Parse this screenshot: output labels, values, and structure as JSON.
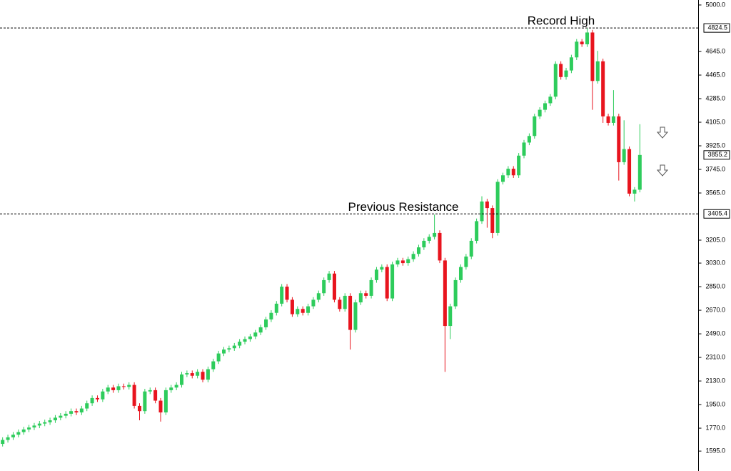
{
  "chart_data": {
    "type": "candlestick",
    "open": [
      1650,
      1680,
      1700,
      1720,
      1740,
      1760,
      1775,
      1790,
      1805,
      1815,
      1830,
      1850,
      1865,
      1880,
      1900,
      1890,
      1920,
      1960,
      2000,
      1990,
      2050,
      2080,
      2060,
      2090,
      2085,
      2100,
      1940,
      1900,
      2050,
      2060,
      1980,
      1890,
      2060,
      2080,
      2100,
      2180,
      2190,
      2170,
      2200,
      2140,
      2220,
      2280,
      2340,
      2370,
      2380,
      2400,
      2430,
      2450,
      2470,
      2500,
      2540,
      2600,
      2650,
      2720,
      2850,
      2750,
      2640,
      2680,
      2650,
      2700,
      2750,
      2800,
      2900,
      2950,
      2750,
      2680,
      2780,
      2520,
      2730,
      2800,
      2780,
      2900,
      2980,
      3000,
      2760,
      3020,
      3050,
      3030,
      3060,
      3100,
      3150,
      3200,
      3230,
      3260,
      3050,
      2550,
      2700,
      2900,
      3000,
      3080,
      3200,
      3350,
      3500,
      3450,
      3260,
      3650,
      3700,
      3750,
      3700,
      3850,
      3950,
      4000,
      4150,
      4200,
      4250,
      4300,
      4550,
      4450,
      4500,
      4600,
      4720,
      4700,
      4790,
      4420,
      4570,
      4150,
      4100,
      4150,
      3800,
      3900,
      3560,
      3590
    ],
    "high": [
      1700,
      1720,
      1740,
      1760,
      1780,
      1795,
      1810,
      1825,
      1835,
      1850,
      1870,
      1885,
      1900,
      1920,
      1920,
      1940,
      1980,
      2020,
      2020,
      2070,
      2100,
      2100,
      2110,
      2110,
      2120,
      2120,
      1960,
      2070,
      2080,
      2080,
      2000,
      2080,
      2100,
      2120,
      2200,
      2210,
      2210,
      2220,
      2220,
      2240,
      2300,
      2360,
      2390,
      2400,
      2420,
      2450,
      2470,
      2490,
      2520,
      2560,
      2620,
      2670,
      2740,
      2870,
      2870,
      2770,
      2700,
      2700,
      2720,
      2770,
      2820,
      2920,
      2970,
      2970,
      2770,
      2800,
      2800,
      2750,
      2820,
      2820,
      2920,
      3000,
      3020,
      3020,
      3040,
      3070,
      3070,
      3080,
      3120,
      3170,
      3220,
      3250,
      3400,
      3280,
      3070,
      2720,
      2920,
      3020,
      3100,
      3220,
      3370,
      3540,
      3520,
      3470,
      3670,
      3720,
      3770,
      3770,
      3870,
      3970,
      4020,
      4170,
      4220,
      4270,
      4320,
      4570,
      4570,
      4520,
      4620,
      4740,
      4740,
      4824.5,
      4810,
      4650,
      4590,
      4170,
      4350,
      4170,
      4120,
      3920,
      3610,
      4090
    ],
    "low": [
      1630,
      1660,
      1680,
      1700,
      1720,
      1740,
      1755,
      1770,
      1785,
      1795,
      1810,
      1830,
      1845,
      1860,
      1870,
      1870,
      1900,
      1940,
      1970,
      1970,
      2030,
      2040,
      2040,
      2065,
      2065,
      1920,
      1830,
      1880,
      2030,
      1960,
      1820,
      1870,
      2040,
      2060,
      2080,
      2160,
      2150,
      2150,
      2120,
      2120,
      2200,
      2260,
      2320,
      2350,
      2360,
      2380,
      2410,
      2430,
      2450,
      2480,
      2520,
      2580,
      2630,
      2700,
      2730,
      2620,
      2620,
      2630,
      2630,
      2680,
      2730,
      2780,
      2880,
      2730,
      2660,
      2660,
      2370,
      2500,
      2710,
      2760,
      2760,
      2880,
      2960,
      2740,
      2740,
      3000,
      3010,
      3010,
      3040,
      3080,
      3130,
      3180,
      3210,
      3030,
      2200,
      2450,
      2680,
      2880,
      2980,
      3060,
      3180,
      3330,
      3300,
      3220,
      3240,
      3630,
      3680,
      3680,
      3680,
      3830,
      3930,
      3980,
      4130,
      4180,
      4230,
      4280,
      4430,
      4430,
      4480,
      4580,
      4680,
      4680,
      4200,
      4400,
      4100,
      4080,
      4080,
      3660,
      3780,
      3540,
      3500,
      3570
    ],
    "close": [
      1680,
      1700,
      1720,
      1740,
      1760,
      1775,
      1790,
      1805,
      1815,
      1830,
      1850,
      1865,
      1880,
      1900,
      1890,
      1920,
      1960,
      2000,
      1990,
      2050,
      2080,
      2060,
      2090,
      2085,
      2100,
      1940,
      1900,
      2050,
      2060,
      1980,
      1890,
      2060,
      2080,
      2100,
      2180,
      2190,
      2170,
      2200,
      2140,
      2220,
      2280,
      2340,
      2370,
      2380,
      2400,
      2430,
      2450,
      2470,
      2500,
      2540,
      2600,
      2650,
      2720,
      2850,
      2750,
      2640,
      2680,
      2650,
      2700,
      2750,
      2800,
      2900,
      2950,
      2750,
      2680,
      2780,
      2520,
      2730,
      2800,
      2780,
      2900,
      2980,
      3000,
      2760,
      3020,
      3050,
      3030,
      3060,
      3100,
      3150,
      3200,
      3230,
      3260,
      3050,
      2550,
      2700,
      2900,
      3000,
      3080,
      3200,
      3350,
      3500,
      3450,
      3260,
      3650,
      3700,
      3750,
      3700,
      3850,
      3950,
      4000,
      4150,
      4200,
      4250,
      4300,
      4550,
      4450,
      4500,
      4600,
      4720,
      4700,
      4790,
      4420,
      4570,
      4150,
      4100,
      4150,
      3800,
      3900,
      3560,
      3590,
      3855.2
    ],
    "up_color": "#2ecc5c",
    "down_color": "#e8141e",
    "ylim": [
      1443,
      5038
    ],
    "yticks": [
      {
        "value": 5000,
        "label": "5000.0"
      },
      {
        "value": 4645,
        "label": "4645.0"
      },
      {
        "value": 4465,
        "label": "4465.0"
      },
      {
        "value": 4285,
        "label": "4285.0"
      },
      {
        "value": 4105,
        "label": "4105.0"
      },
      {
        "value": 3925,
        "label": "3925.0"
      },
      {
        "value": 3745,
        "label": "3745.0"
      },
      {
        "value": 3565,
        "label": "3565.0"
      },
      {
        "value": 3205,
        "label": "3205.0"
      },
      {
        "value": 3030,
        "label": "3030.0"
      },
      {
        "value": 2850,
        "label": "2850.0"
      },
      {
        "value": 2670,
        "label": "2670.0"
      },
      {
        "value": 2490,
        "label": "2490.0"
      },
      {
        "value": 2310,
        "label": "2310.0"
      },
      {
        "value": 2130,
        "label": "2130.0"
      },
      {
        "value": 1950,
        "label": "1950.0"
      },
      {
        "value": 1770,
        "label": "1770.0"
      },
      {
        "value": 1595,
        "label": "1595.0"
      }
    ],
    "levels": [
      {
        "value": 4824.5,
        "label": "4824.5",
        "text": "Record High"
      },
      {
        "value": 3405.4,
        "label": "3405.4",
        "text": "Previous Resistance"
      }
    ],
    "last_price": {
      "value": 3855.2,
      "label": "3855.2"
    }
  }
}
